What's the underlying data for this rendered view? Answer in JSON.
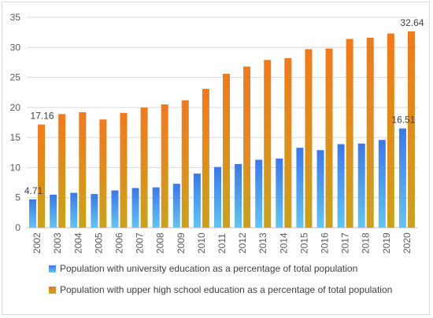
{
  "chart_data": {
    "type": "bar",
    "categories": [
      "2002",
      "2003",
      "2004",
      "2005",
      "2006",
      "2007",
      "2008",
      "2009",
      "2010",
      "2011",
      "2012",
      "2013",
      "2014",
      "2015",
      "2016",
      "2017",
      "2018",
      "2019",
      "2020"
    ],
    "series": [
      {
        "name": "Population with university  education as a percentage of total population",
        "values": [
          4.71,
          5.5,
          5.8,
          5.6,
          6.2,
          6.6,
          6.7,
          7.3,
          9.0,
          10.1,
          10.6,
          11.3,
          11.5,
          13.3,
          12.9,
          13.9,
          14.0,
          14.6,
          16.51
        ],
        "color": "#4a8fe8"
      },
      {
        "name": "Population with upper high school education as a percentage of total population",
        "values": [
          17.16,
          18.9,
          19.2,
          18.0,
          19.1,
          20.0,
          20.5,
          21.2,
          23.1,
          25.6,
          26.8,
          27.9,
          28.2,
          29.7,
          29.8,
          31.4,
          31.6,
          32.3,
          32.64
        ],
        "color": "#f07a1e"
      }
    ],
    "ylim": [
      0,
      35
    ],
    "yticks": [
      0,
      5,
      10,
      15,
      20,
      25,
      30,
      35
    ],
    "grid": true,
    "legend_position": "bottom",
    "data_labels": [
      {
        "series": 0,
        "index": 0,
        "text": "4.71"
      },
      {
        "series": 1,
        "index": 0,
        "text": "17.16"
      },
      {
        "series": 0,
        "index": 18,
        "text": "16.51"
      },
      {
        "series": 1,
        "index": 18,
        "text": "32.64"
      }
    ]
  }
}
